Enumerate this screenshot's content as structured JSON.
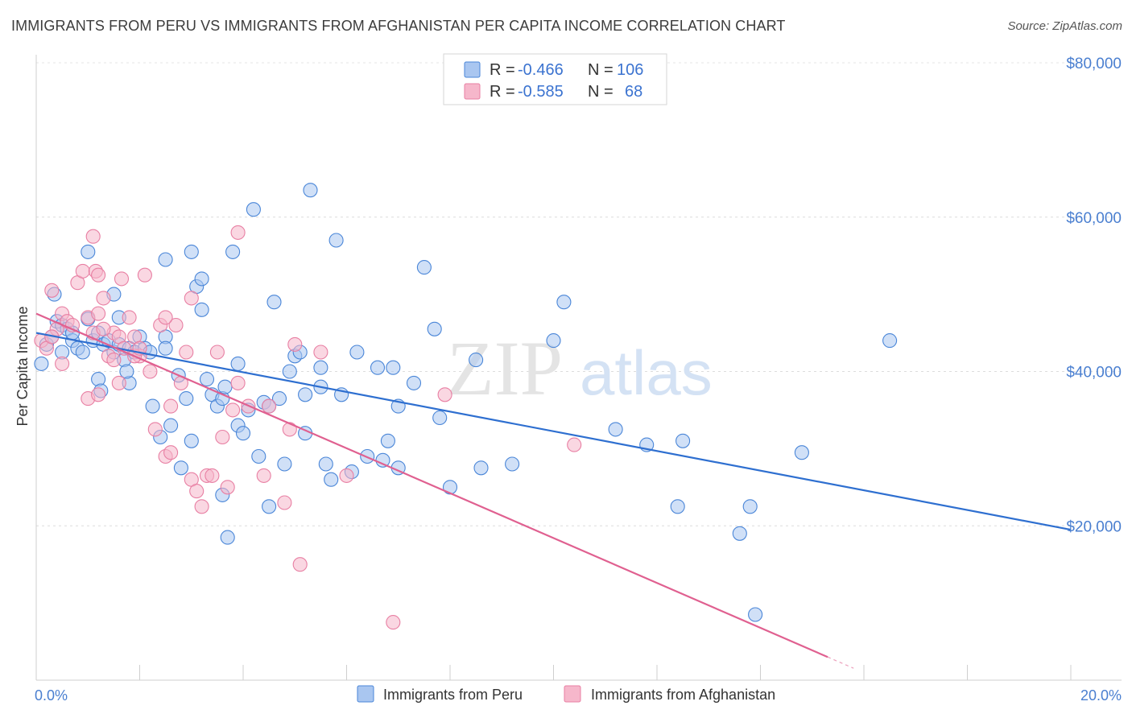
{
  "title": "IMMIGRANTS FROM PERU VS IMMIGRANTS FROM AFGHANISTAN PER CAPITA INCOME CORRELATION CHART",
  "source": "Source: ZipAtlas.com",
  "watermark": {
    "zip": "ZIP",
    "atlas": "atlas"
  },
  "legend": {
    "r_label": "R =",
    "n_label": "N =",
    "rows": [
      {
        "r": "-0.466",
        "n": "106",
        "color": "#a9c6f0"
      },
      {
        "r": "-0.585",
        "n": "68",
        "color": "#f6b7cb"
      }
    ]
  },
  "chart_data": {
    "type": "scatter",
    "title": "IMMIGRANTS FROM PERU VS IMMIGRANTS FROM AFGHANISTAN PER CAPITA INCOME CORRELATION CHART",
    "xlabel": "",
    "ylabel": "Per Capita Income",
    "xlim": [
      0,
      20
    ],
    "ylim": [
      0,
      80000
    ],
    "x_tick_labels": [
      "0.0%",
      "20.0%"
    ],
    "y_ticks": [
      20000,
      40000,
      60000,
      80000
    ],
    "y_tick_labels": [
      "$20,000",
      "$40,000",
      "$60,000",
      "$80,000"
    ],
    "grid": true,
    "legend_position": "top-center",
    "series": [
      {
        "name": "Immigrants from Peru",
        "color": "#4a86d8",
        "fill": "#a9c6f0",
        "trend": {
          "x": [
            0,
            20
          ],
          "y": [
            45000,
            19500
          ],
          "color": "#2e6fd0"
        },
        "points": [
          [
            0.1,
            41000
          ],
          [
            0.2,
            43500
          ],
          [
            0.3,
            44500
          ],
          [
            0.4,
            46500
          ],
          [
            0.5,
            46000
          ],
          [
            0.6,
            45500
          ],
          [
            0.7,
            44000
          ],
          [
            0.8,
            43000
          ],
          [
            0.9,
            42500
          ],
          [
            1.0,
            46800
          ],
          [
            0.35,
            50000
          ],
          [
            0.5,
            42500
          ],
          [
            1.1,
            44000
          ],
          [
            1.2,
            45000
          ],
          [
            1.3,
            43500
          ],
          [
            1.4,
            44000
          ],
          [
            1.5,
            42500
          ],
          [
            1.6,
            43500
          ],
          [
            1.7,
            41500
          ],
          [
            1.8,
            43000
          ],
          [
            1.9,
            42500
          ],
          [
            2.0,
            44500
          ],
          [
            2.1,
            43000
          ],
          [
            2.2,
            42500
          ],
          [
            1.0,
            55500
          ],
          [
            1.5,
            50000
          ],
          [
            1.2,
            39000
          ],
          [
            1.25,
            37500
          ],
          [
            1.8,
            38500
          ],
          [
            1.75,
            40000
          ],
          [
            2.25,
            35500
          ],
          [
            2.4,
            31500
          ],
          [
            2.5,
            54500
          ],
          [
            2.5,
            44500
          ],
          [
            2.5,
            43000
          ],
          [
            2.6,
            33000
          ],
          [
            2.8,
            27500
          ],
          [
            2.75,
            39500
          ],
          [
            2.9,
            36500
          ],
          [
            3.0,
            31000
          ],
          [
            3.0,
            55500
          ],
          [
            3.1,
            51000
          ],
          [
            3.2,
            48000
          ],
          [
            3.3,
            39000
          ],
          [
            3.4,
            37000
          ],
          [
            3.5,
            35500
          ],
          [
            3.6,
            36500
          ],
          [
            3.6,
            24000
          ],
          [
            3.65,
            38000
          ],
          [
            3.7,
            18500
          ],
          [
            3.8,
            55500
          ],
          [
            3.9,
            41000
          ],
          [
            3.9,
            33000
          ],
          [
            4.0,
            32000
          ],
          [
            4.1,
            35000
          ],
          [
            4.2,
            61000
          ],
          [
            4.3,
            29000
          ],
          [
            4.4,
            36000
          ],
          [
            4.5,
            22500
          ],
          [
            4.5,
            35500
          ],
          [
            4.6,
            49000
          ],
          [
            4.7,
            36500
          ],
          [
            4.8,
            28000
          ],
          [
            4.9,
            40000
          ],
          [
            5.0,
            42000
          ],
          [
            5.1,
            42500
          ],
          [
            5.2,
            32000
          ],
          [
            5.2,
            37000
          ],
          [
            5.3,
            63500
          ],
          [
            5.5,
            38000
          ],
          [
            5.5,
            40500
          ],
          [
            5.6,
            28000
          ],
          [
            5.7,
            26000
          ],
          [
            5.8,
            57000
          ],
          [
            5.9,
            37000
          ],
          [
            6.1,
            27000
          ],
          [
            6.2,
            42500
          ],
          [
            6.4,
            29000
          ],
          [
            6.6,
            40500
          ],
          [
            6.7,
            28500
          ],
          [
            6.8,
            31000
          ],
          [
            6.9,
            40500
          ],
          [
            7.0,
            27500
          ],
          [
            7.0,
            35500
          ],
          [
            7.3,
            38500
          ],
          [
            7.5,
            53500
          ],
          [
            7.7,
            45500
          ],
          [
            7.8,
            34000
          ],
          [
            8.0,
            25000
          ],
          [
            8.5,
            41500
          ],
          [
            8.6,
            27500
          ],
          [
            9.2,
            28000
          ],
          [
            10.2,
            49000
          ],
          [
            10.0,
            44000
          ],
          [
            11.2,
            32500
          ],
          [
            11.8,
            30500
          ],
          [
            12.5,
            31000
          ],
          [
            12.4,
            22500
          ],
          [
            13.6,
            19000
          ],
          [
            13.8,
            22500
          ],
          [
            13.9,
            8500
          ],
          [
            14.8,
            29500
          ],
          [
            16.5,
            44000
          ],
          [
            0.7,
            45000
          ],
          [
            1.6,
            47000
          ],
          [
            3.2,
            52000
          ]
        ]
      },
      {
        "name": "Immigrants from Afghanistan",
        "color": "#e87fa3",
        "fill": "#f6b7cb",
        "trend": {
          "x": [
            0,
            15.3
          ],
          "y": [
            47500,
            3000
          ],
          "color": "#e06090"
        },
        "points": [
          [
            0.1,
            44000
          ],
          [
            0.2,
            43000
          ],
          [
            0.3,
            50500
          ],
          [
            0.4,
            45500
          ],
          [
            0.5,
            47500
          ],
          [
            0.6,
            46500
          ],
          [
            0.7,
            46000
          ],
          [
            0.8,
            51500
          ],
          [
            0.9,
            53000
          ],
          [
            1.0,
            47000
          ],
          [
            1.1,
            45000
          ],
          [
            1.2,
            47500
          ],
          [
            1.3,
            49500
          ],
          [
            1.4,
            42000
          ],
          [
            1.5,
            45000
          ],
          [
            1.6,
            44500
          ],
          [
            1.7,
            43000
          ],
          [
            1.8,
            47000
          ],
          [
            1.9,
            44500
          ],
          [
            2.0,
            42000
          ],
          [
            1.1,
            57500
          ],
          [
            1.15,
            53000
          ],
          [
            1.2,
            52500
          ],
          [
            1.65,
            52000
          ],
          [
            2.1,
            52500
          ],
          [
            1.0,
            36500
          ],
          [
            1.2,
            37000
          ],
          [
            1.5,
            41500
          ],
          [
            1.6,
            38500
          ],
          [
            1.9,
            42000
          ],
          [
            2.2,
            40000
          ],
          [
            2.3,
            32500
          ],
          [
            2.4,
            46000
          ],
          [
            2.5,
            29000
          ],
          [
            2.6,
            29500
          ],
          [
            2.6,
            35500
          ],
          [
            2.7,
            46000
          ],
          [
            2.8,
            38500
          ],
          [
            2.9,
            42500
          ],
          [
            3.0,
            26000
          ],
          [
            3.0,
            49500
          ],
          [
            3.1,
            24500
          ],
          [
            3.2,
            22500
          ],
          [
            3.3,
            26500
          ],
          [
            3.4,
            26500
          ],
          [
            3.5,
            42500
          ],
          [
            3.6,
            31500
          ],
          [
            3.7,
            25000
          ],
          [
            3.8,
            35000
          ],
          [
            3.9,
            38500
          ],
          [
            3.9,
            58000
          ],
          [
            4.1,
            35500
          ],
          [
            4.4,
            26500
          ],
          [
            4.5,
            35500
          ],
          [
            4.8,
            23000
          ],
          [
            4.9,
            32500
          ],
          [
            5.0,
            43500
          ],
          [
            5.1,
            15000
          ],
          [
            5.5,
            42500
          ],
          [
            6.0,
            26500
          ],
          [
            6.9,
            7500
          ],
          [
            7.9,
            37000
          ],
          [
            10.4,
            30500
          ],
          [
            0.3,
            44500
          ],
          [
            0.5,
            41000
          ],
          [
            1.3,
            45500
          ],
          [
            2.0,
            43000
          ],
          [
            2.5,
            47000
          ]
        ]
      }
    ]
  }
}
